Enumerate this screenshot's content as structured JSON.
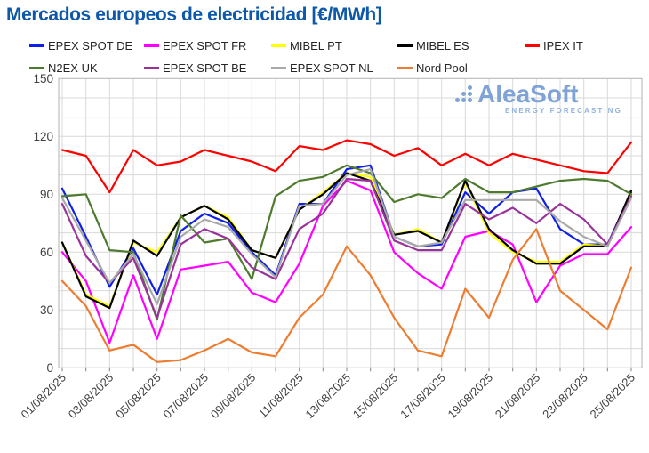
{
  "title": "Mercados europeos de electricidad [€/MWh]",
  "logo": {
    "name": "AleaSoft",
    "tagline": "ENERGY FORECASTING"
  },
  "colors": {
    "title": "#0d58a8",
    "axis_text": "#404040",
    "grid": "#d9d9d9",
    "plot_border": "#bfbfbf",
    "tick": "#808080",
    "logo_blue": "#7fa3d6"
  },
  "chart_data": {
    "type": "line",
    "title": "Mercados europeos de electricidad [€/MWh]",
    "xlabel": "",
    "ylabel": "€/MWh",
    "ylim": [
      0,
      150
    ],
    "yticks": [
      0,
      30,
      60,
      90,
      120,
      150
    ],
    "grid": true,
    "grid_step_y": 10,
    "legend_position": "top",
    "x": [
      "01/08/2025",
      "02/08/2025",
      "03/08/2025",
      "04/08/2025",
      "05/08/2025",
      "06/08/2025",
      "07/08/2025",
      "08/08/2025",
      "09/08/2025",
      "10/08/2025",
      "11/08/2025",
      "12/08/2025",
      "13/08/2025",
      "14/08/2025",
      "15/08/2025",
      "16/08/2025",
      "17/08/2025",
      "18/08/2025",
      "19/08/2025",
      "20/08/2025",
      "21/08/2025",
      "22/08/2025",
      "23/08/2025",
      "24/08/2025",
      "25/08/2025"
    ],
    "x_tick_labels_shown": [
      "01/08/2025",
      "03/08/2025",
      "05/08/2025",
      "07/08/2025",
      "09/08/2025",
      "11/08/2025",
      "13/08/2025",
      "15/08/2025",
      "17/08/2025",
      "19/08/2025",
      "21/08/2025",
      "23/08/2025",
      "25/08/2025"
    ],
    "series": [
      {
        "name": "EPEX SPOT DE",
        "color": "#0f1fe8",
        "values": [
          93,
          68,
          42,
          62,
          38,
          71,
          80,
          75,
          60,
          48,
          85,
          85,
          103,
          105,
          68,
          63,
          64,
          91,
          80,
          91,
          93,
          72,
          64,
          64,
          91
        ]
      },
      {
        "name": "EPEX SPOT FR",
        "color": "#ff00ff",
        "values": [
          60,
          45,
          13,
          48,
          15,
          51,
          53,
          55,
          39,
          34,
          54,
          84,
          97,
          92,
          60,
          49,
          41,
          68,
          71,
          64,
          34,
          53,
          59,
          59,
          73
        ]
      },
      {
        "name": "MIBEL PT",
        "color": "#ffff00",
        "values": [
          65,
          38,
          32,
          65,
          60,
          78,
          84,
          78,
          61,
          57,
          82,
          91,
          101,
          99,
          69,
          72,
          65,
          96,
          70,
          60,
          55,
          55,
          64,
          63,
          90
        ]
      },
      {
        "name": "MIBEL ES",
        "color": "#000000",
        "values": [
          65,
          37,
          31,
          66,
          58,
          78,
          84,
          77,
          61,
          57,
          82,
          90,
          101,
          97,
          69,
          71,
          65,
          97,
          72,
          61,
          54,
          54,
          63,
          63,
          92
        ]
      },
      {
        "name": "IPEX IT",
        "color": "#fe0000",
        "values": [
          113,
          110,
          91,
          113,
          105,
          107,
          113,
          110,
          107,
          102,
          115,
          113,
          118,
          116,
          110,
          114,
          105,
          111,
          105,
          111,
          108,
          105,
          102,
          101,
          117
        ]
      },
      {
        "name": "N2EX UK",
        "color": "#4d7a2d",
        "values": [
          89,
          90,
          61,
          60,
          25,
          79,
          65,
          67,
          46,
          89,
          97,
          99,
          105,
          101,
          86,
          90,
          88,
          98,
          91,
          91,
          94,
          97,
          98,
          97,
          90
        ]
      },
      {
        "name": "EPEX SPOT BE",
        "color": "#993399",
        "values": [
          85,
          58,
          44,
          57,
          26,
          64,
          72,
          67,
          52,
          46,
          72,
          80,
          98,
          97,
          66,
          61,
          61,
          85,
          77,
          83,
          75,
          85,
          77,
          64,
          89
        ]
      },
      {
        "name": "EPEX SPOT NL",
        "color": "#a9a9a9",
        "values": [
          88,
          66,
          44,
          59,
          33,
          68,
          77,
          73,
          59,
          47,
          84,
          85,
          100,
          103,
          68,
          63,
          65,
          87,
          87,
          87,
          87,
          76,
          68,
          63,
          88
        ]
      },
      {
        "name": "Nord Pool",
        "color": "#ed7d31",
        "values": [
          45,
          32,
          9,
          12,
          3,
          4,
          9,
          15,
          8,
          6,
          26,
          38,
          63,
          48,
          26,
          9,
          6,
          41,
          26,
          56,
          72,
          40,
          30,
          20,
          52
        ]
      }
    ]
  }
}
